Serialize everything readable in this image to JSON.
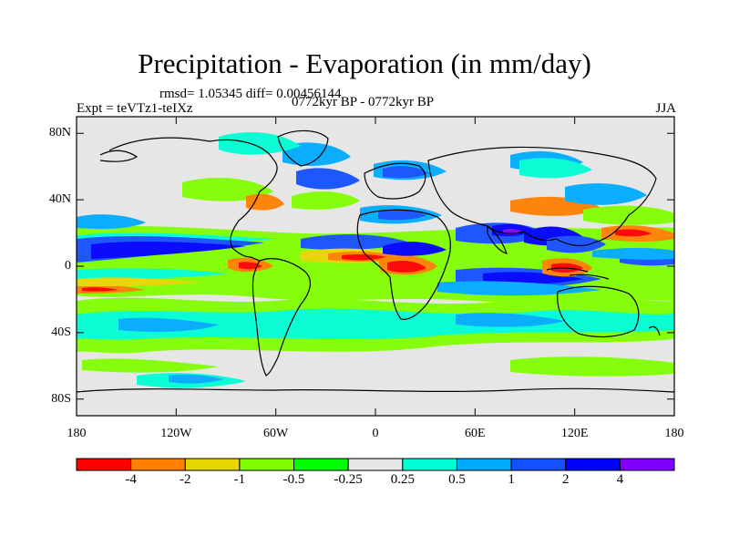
{
  "title": "Precipitation - Evaporation (in mm/day)",
  "stats": "rmsd= 1.05345  diff= 0.00456144",
  "left_label": "Expt = teVTz1-teIXz",
  "center_label": "0772kyr BP - 0772kyr BP",
  "right_label": "JJA",
  "lat_labels": [
    "80N",
    "40N",
    "0",
    "40S",
    "80S"
  ],
  "lat_values": [
    80,
    40,
    0,
    -40,
    -80
  ],
  "lon_labels": [
    "180",
    "120W",
    "60W",
    "0",
    "60E",
    "120E",
    "180"
  ],
  "lon_values": [
    -180,
    -120,
    -60,
    0,
    60,
    120,
    180
  ],
  "colorbar": {
    "labels": [
      "-4",
      "-2",
      "-1",
      "-0.5",
      "-0.25",
      "0.25",
      "0.5",
      "1",
      "2",
      "4"
    ],
    "colors": [
      "#ff0000",
      "#ff8000",
      "#e6d600",
      "#80ff00",
      "#00ff00",
      "#e6e6e6",
      "#00ffd5",
      "#00aaff",
      "#1450ff",
      "#0000ff",
      "#8000ff"
    ]
  },
  "colors": {
    "ocean_bg": "#e6e6e6",
    "coast": "#000000"
  }
}
